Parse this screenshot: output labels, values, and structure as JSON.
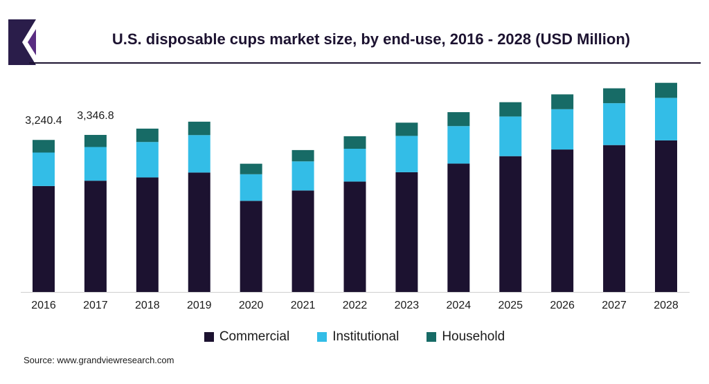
{
  "colors": {
    "commercial": "#1c1230",
    "institutional": "#33bde7",
    "household": "#176b66",
    "logo_dark": "#2a1d4a",
    "logo_purple": "#5a2d82",
    "text": "#1a1a1a"
  },
  "title": "U.S. disposable cups market size, by end-use, 2016 - 2028 (USD Million)",
  "source": "Source: www.grandviewresearch.com",
  "chart_data": {
    "type": "bar",
    "stacked": true,
    "title": "U.S. disposable cups market size, by end-use, 2016 - 2028 (USD Million)",
    "categories": [
      "2016",
      "2017",
      "2018",
      "2019",
      "2020",
      "2021",
      "2022",
      "2023",
      "2024",
      "2025",
      "2026",
      "2027",
      "2028"
    ],
    "series": [
      {
        "name": "Commercial",
        "values": [
          2258,
          2371,
          2441,
          2545,
          1942,
          2163,
          2353,
          2552,
          2736,
          2894,
          3036,
          3130,
          3230
        ]
      },
      {
        "name": "Institutional",
        "values": [
          713,
          718,
          755,
          798,
          567,
          620,
          699,
          774,
          799,
          845,
          859,
          893,
          907
        ]
      },
      {
        "name": "Household",
        "values": [
          269,
          258,
          285,
          286,
          224,
          241,
          267,
          282,
          297,
          305,
          316,
          317,
          320
        ]
      }
    ],
    "data_labels": [
      {
        "category": "2016",
        "text": "3,240.4"
      },
      {
        "category": "2017",
        "text": "3,346.8"
      }
    ],
    "ylim": [
      0,
      4600
    ],
    "grid": false,
    "legend": "bottom-center",
    "xlabel": "",
    "ylabel": ""
  }
}
